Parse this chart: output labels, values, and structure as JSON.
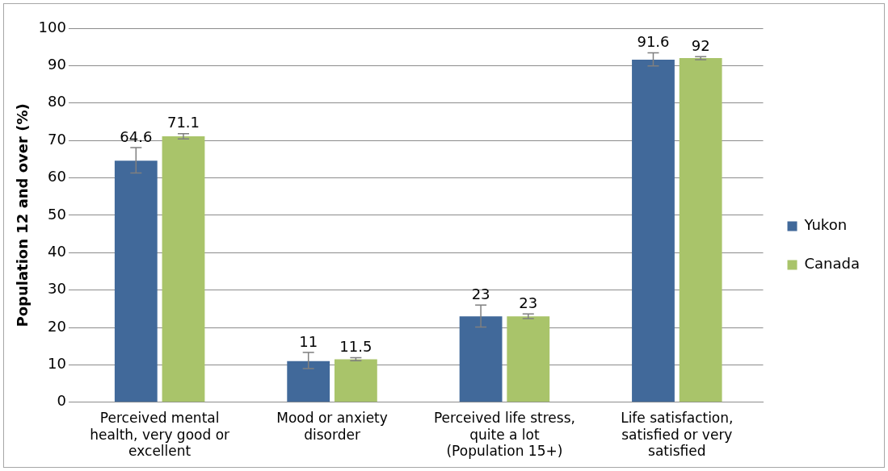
{
  "chart_data": {
    "type": "bar",
    "ylabel": "Population 12 and over (%)",
    "categories": [
      "Perceived mental health, very good or excellent",
      "Mood or anxiety disorder",
      "Perceived life stress, quite a lot (Population 15+)",
      "Life satisfaction, satisfied or very satisfied"
    ],
    "series": [
      {
        "name": "Yukon",
        "color": "#41699a",
        "values": [
          64.6,
          11,
          23,
          91.6
        ],
        "errors": [
          [
            61.3,
            68.1
          ],
          [
            9.0,
            13.3
          ],
          [
            20.1,
            26.0
          ],
          [
            89.9,
            93.4
          ]
        ]
      },
      {
        "name": "Canada",
        "color": "#a9c46a",
        "values": [
          71.1,
          11.5,
          23,
          92
        ],
        "errors": [
          [
            70.4,
            71.8
          ],
          [
            11.1,
            11.9
          ],
          [
            22.4,
            23.6
          ],
          [
            91.6,
            92.4
          ]
        ]
      }
    ],
    "ylim": [
      0,
      100
    ],
    "yticks": [
      0,
      10,
      20,
      30,
      40,
      50,
      60,
      70,
      80,
      90,
      100
    ],
    "grid": "y",
    "legend": "right",
    "data_labels": true
  }
}
